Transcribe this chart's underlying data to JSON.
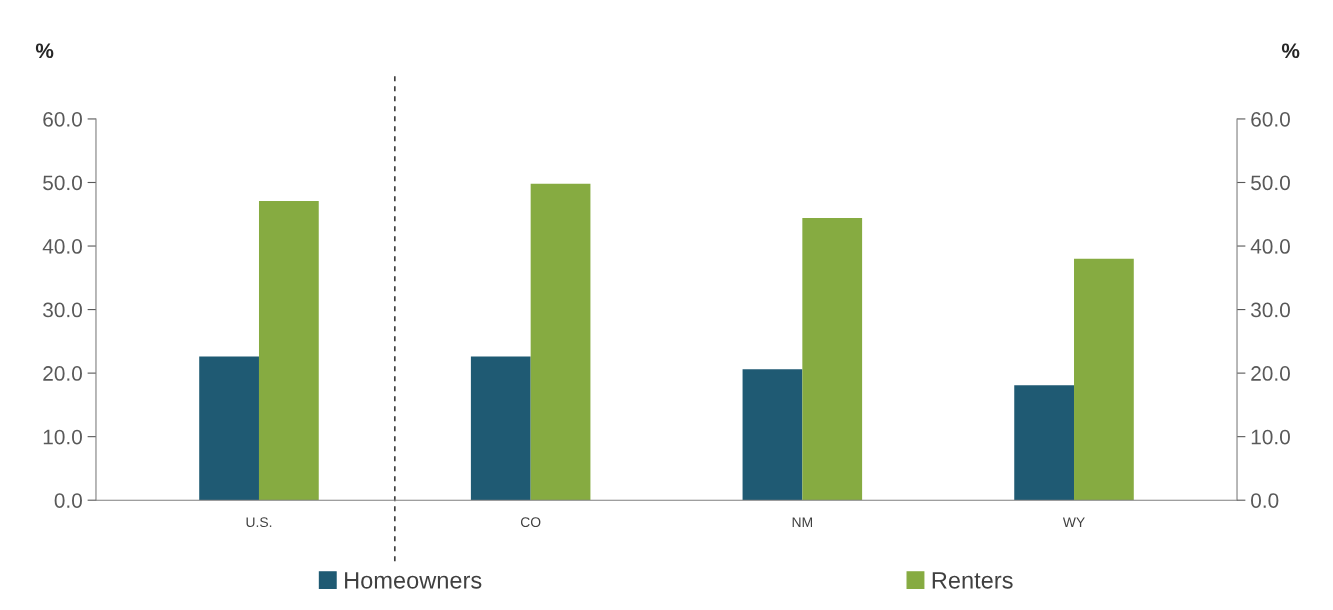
{
  "chart_data": {
    "type": "bar",
    "categories": [
      "U.S.",
      "CO",
      "NM",
      "WY"
    ],
    "series": [
      {
        "name": "Homeowners",
        "color": "#1f5a73",
        "values": [
          22.6,
          22.6,
          20.6,
          18.1
        ]
      },
      {
        "name": "Renters",
        "color": "#86ab41",
        "values": [
          47.1,
          49.8,
          44.4,
          38.0
        ]
      }
    ],
    "ylabel": "%",
    "y2label": "%",
    "ylim": [
      0,
      60
    ],
    "y2lim": [
      0,
      60
    ],
    "yticks": [
      {
        "value": 0,
        "label": "0.0"
      },
      {
        "value": 10,
        "label": "10.0"
      },
      {
        "value": 20,
        "label": "20.0"
      },
      {
        "value": 30,
        "label": "30.0"
      },
      {
        "value": 40,
        "label": "40.0"
      },
      {
        "value": 50,
        "label": "50.0"
      },
      {
        "value": 60,
        "label": "60.0"
      }
    ],
    "y2ticks": [
      {
        "value": 0,
        "label": "0.0"
      },
      {
        "value": 10,
        "label": "10.0"
      },
      {
        "value": 20,
        "label": "20.0"
      },
      {
        "value": 30,
        "label": "30.0"
      },
      {
        "value": 40,
        "label": "40.0"
      },
      {
        "value": 50,
        "label": "50.0"
      },
      {
        "value": 60,
        "label": "60.0"
      }
    ],
    "grid": false,
    "legend": "bottom"
  }
}
